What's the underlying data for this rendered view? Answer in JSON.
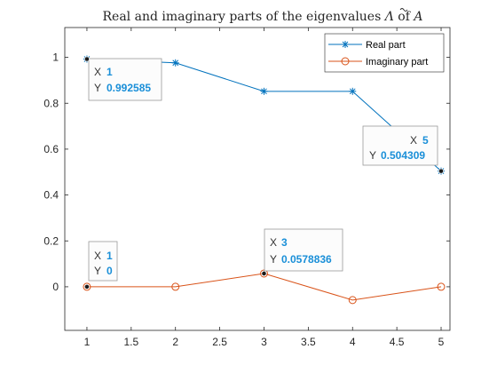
{
  "chart_data": {
    "type": "line",
    "title": "Real and imaginary parts of the eigenvalues Λ of Ã",
    "title_prefix": "Real and imaginary parts of the eigenvalues ",
    "title_symbol": "Λ",
    "title_of": " of ",
    "title_matrix": "A",
    "xlabel": "",
    "ylabel": "",
    "xlim": [
      0.75,
      5.1
    ],
    "ylim": [
      -0.19,
      1.13
    ],
    "xticks": [
      1,
      1.5,
      2,
      2.5,
      3,
      3.5,
      4,
      4.5,
      5
    ],
    "yticks": [
      0,
      0.2,
      0.4,
      0.6,
      0.8,
      1
    ],
    "xtick_labels": [
      "1",
      "1.5",
      "2",
      "2.5",
      "3",
      "3.5",
      "4",
      "4.5",
      "5"
    ],
    "ytick_labels": [
      "0",
      "0.2",
      "0.4",
      "0.6",
      "0.8",
      "1"
    ],
    "grid": false,
    "legend_position": "top-right",
    "x": [
      1,
      2,
      3,
      4,
      5
    ],
    "series": [
      {
        "name": "Real part",
        "values": [
          0.992585,
          0.976,
          0.852,
          0.852,
          0.504309
        ],
        "color": "#0072bd",
        "marker": "asterisk"
      },
      {
        "name": "Imaginary part",
        "values": [
          0,
          0,
          0.0578836,
          -0.0578836,
          0
        ],
        "color": "#d95319",
        "marker": "circle"
      }
    ],
    "datatips": [
      {
        "x": "1",
        "y": "0.992585",
        "series": 0,
        "index": 0
      },
      {
        "x": "5",
        "y": "0.504309",
        "series": 0,
        "index": 4
      },
      {
        "x": "1",
        "y": "0",
        "series": 1,
        "index": 0
      },
      {
        "x": "3",
        "y": "0.0578836",
        "series": 1,
        "index": 2
      }
    ],
    "datatip_x_label": "X",
    "datatip_y_label": "Y"
  }
}
